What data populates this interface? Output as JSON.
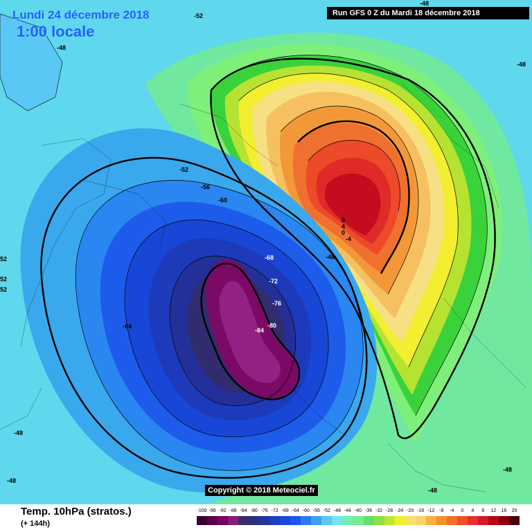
{
  "header": {
    "valid_date": "Lundi 24 décembre 2018",
    "valid_time": "1:00 locale",
    "run_info": "Run GFS 0 Z du Mardi 18 décembre 2018"
  },
  "copyright": "Copyright © 2018 Meteociel.fr",
  "footer": {
    "parameter": "Temp. 10hPa (stratos.)",
    "forecast_hour": "(+ 144h)"
  },
  "contour_labels": [
    {
      "text": "-52",
      "id": "a"
    },
    {
      "text": "-48",
      "id": "b"
    },
    {
      "text": "-48",
      "id": "c"
    },
    {
      "text": "-48",
      "id": "d"
    },
    {
      "text": "-52",
      "id": "e"
    },
    {
      "text": "-56",
      "id": "f"
    },
    {
      "text": "-60",
      "id": "g"
    },
    {
      "text": "-68",
      "id": "h"
    },
    {
      "text": "-72",
      "id": "i"
    },
    {
      "text": "-76",
      "id": "j"
    },
    {
      "text": "-80",
      "id": "k"
    },
    {
      "text": "-84",
      "id": "l"
    },
    {
      "text": "-64",
      "id": "m"
    },
    {
      "text": "52",
      "id": "n"
    },
    {
      "text": "52",
      "id": "o"
    },
    {
      "text": "52",
      "id": "p"
    },
    {
      "text": "-48",
      "id": "q"
    },
    {
      "text": "-48",
      "id": "r"
    },
    {
      "text": "-48",
      "id": "s"
    },
    {
      "text": "-48",
      "id": "t"
    },
    {
      "text": "8",
      "id": "u"
    },
    {
      "text": "4",
      "id": "v"
    },
    {
      "text": "0",
      "id": "w"
    },
    {
      "text": "-4",
      "id": "x"
    },
    {
      "text": "-48",
      "id": "y"
    }
  ],
  "legend": {
    "values": [
      "-100",
      "-96",
      "-92",
      "-88",
      "-84",
      "-80",
      "-76",
      "-72",
      "-68",
      "-64",
      "-60",
      "-56",
      "-52",
      "-48",
      "-44",
      "-40",
      "-36",
      "-32",
      "-28",
      "-24",
      "-20",
      "-16",
      "-12",
      "-8",
      "-4",
      "0",
      "4",
      "8",
      "12",
      "16",
      "20"
    ],
    "colors": [
      "#3a0030",
      "#5a0048",
      "#78005e",
      "#8a1a78",
      "#3a2a6a",
      "#2a2f80",
      "#1f35a0",
      "#1c3fc0",
      "#1748d8",
      "#1d56ee",
      "#2a7bf0",
      "#3ea0f2",
      "#5ac8f4",
      "#79e5f2",
      "#6ff0b0",
      "#76ec8c",
      "#5fe06a",
      "#8fe040",
      "#bfe832",
      "#f0f02a",
      "#f8e070",
      "#f8d26a",
      "#f8b040",
      "#f59030",
      "#f27028",
      "#ee5028",
      "#e8302a",
      "#d81828",
      "#b80818",
      "#8a0010",
      "#4a0008"
    ]
  }
}
